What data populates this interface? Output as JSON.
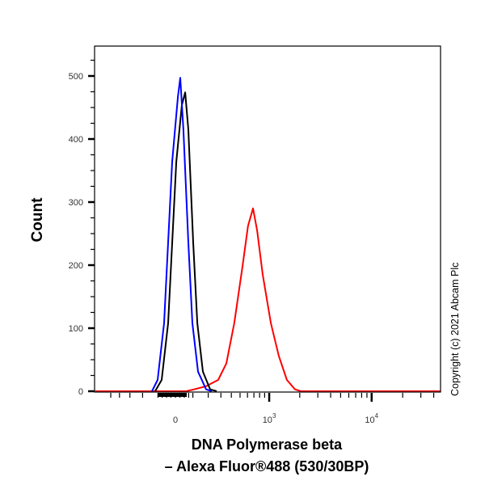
{
  "chart_data": {
    "type": "line",
    "subtype": "flow-cytometry-histogram",
    "xlabel_line1": "DNA Polymerase beta",
    "xlabel_line2": "– Alexa Fluor®488 (530/30BP)",
    "ylabel": "Count",
    "x_scale": "biexponential",
    "xlim": [
      -725,
      46500
    ],
    "ylim": [
      0,
      547
    ],
    "grid": false,
    "x_ticks": [
      {
        "value": 0,
        "label": "0",
        "sup": ""
      },
      {
        "value": 1000,
        "label": "10",
        "sup": "3"
      },
      {
        "value": 10000,
        "label": "10",
        "sup": "4"
      }
    ],
    "y_ticks": [
      0,
      100,
      200,
      300,
      400,
      500
    ],
    "y_tick_labels": [
      "0",
      "100",
      "200",
      "300",
      "400",
      "500"
    ],
    "series": [
      {
        "color": "#0000ff",
        "points": [
          [
            -137,
            0
          ],
          [
            -102,
            18
          ],
          [
            -64,
            108
          ],
          [
            -18,
            364
          ],
          [
            14,
            467
          ],
          [
            27,
            497
          ],
          [
            45,
            415
          ],
          [
            73,
            236
          ],
          [
            97,
            108
          ],
          [
            132,
            31
          ],
          [
            185,
            3
          ],
          [
            227,
            0
          ]
        ]
      },
      {
        "color": "#000000",
        "points": [
          [
            -117,
            0
          ],
          [
            -78,
            18
          ],
          [
            -41,
            108
          ],
          [
            5,
            364
          ],
          [
            36,
            454
          ],
          [
            55,
            474
          ],
          [
            73,
            415
          ],
          [
            102,
            236
          ],
          [
            127,
            108
          ],
          [
            163,
            31
          ],
          [
            214,
            3
          ],
          [
            265,
            0
          ]
        ]
      },
      {
        "color": "#ff0000",
        "points": [
          [
            -725,
            0
          ],
          [
            60,
            0
          ],
          [
            107,
            3
          ],
          [
            185,
            8
          ],
          [
            277,
            18
          ],
          [
            350,
            44
          ],
          [
            432,
            108
          ],
          [
            530,
            197
          ],
          [
            608,
            262
          ],
          [
            685,
            290
          ],
          [
            755,
            255
          ],
          [
            860,
            185
          ],
          [
            1038,
            108
          ],
          [
            1245,
            56
          ],
          [
            1495,
            18
          ],
          [
            1795,
            3
          ],
          [
            2050,
            0
          ],
          [
            46500,
            0
          ]
        ]
      }
    ]
  },
  "watermark": "Copyright (c) 2021 Abcam Plc"
}
